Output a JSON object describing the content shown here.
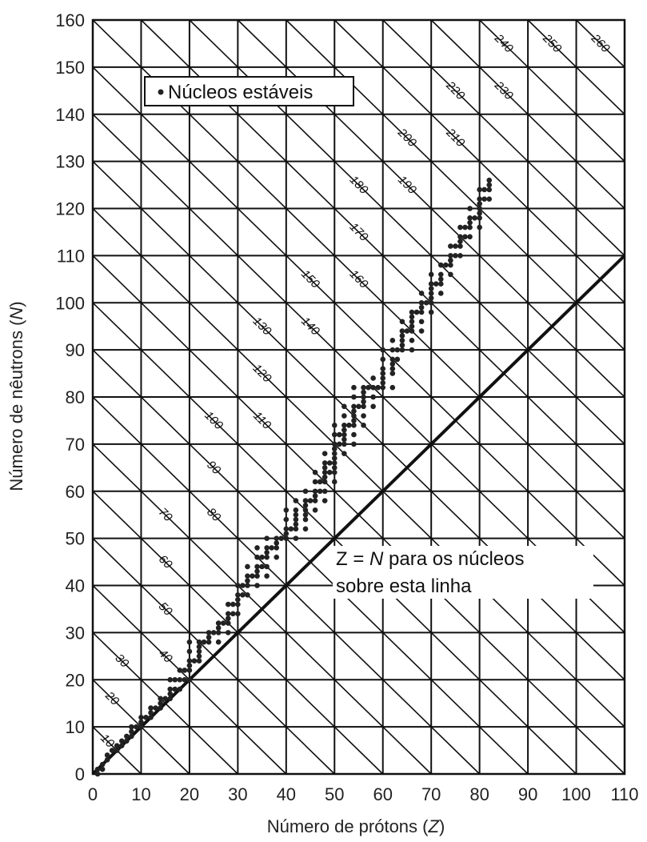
{
  "chart_data": {
    "type": "scatter",
    "xlabel_prefix": "Número de prótons (",
    "xlabel_var": "Z",
    "xlabel_suffix": ")",
    "ylabel_prefix": "Número de nêutrons (",
    "ylabel_var": "N",
    "ylabel_suffix": ")",
    "xlim": [
      0,
      110
    ],
    "ylim": [
      0,
      160
    ],
    "xticks": [
      0,
      10,
      20,
      30,
      40,
      50,
      60,
      70,
      80,
      90,
      100,
      110
    ],
    "yticks": [
      0,
      10,
      20,
      30,
      40,
      50,
      60,
      70,
      80,
      90,
      100,
      110,
      120,
      130,
      140,
      150,
      160
    ],
    "grid": true,
    "legend": {
      "label": "Núcleos estáveis",
      "placement": "top-left"
    },
    "isobar_lines": {
      "description_values": [
        10,
        20,
        30,
        40,
        50,
        60,
        70,
        80,
        90,
        100,
        110,
        120,
        130,
        140,
        150,
        160,
        170,
        180,
        190,
        200,
        210,
        220,
        230,
        240,
        250,
        260
      ]
    },
    "reference_line": {
      "label_line1_prefix": "Z = ",
      "label_line1_var": "N",
      "label_line1_suffix": " para os núcleos",
      "label_line2": "sobre esta linha",
      "x": [
        0,
        110
      ],
      "y": [
        0,
        110
      ]
    },
    "series": [
      {
        "name": "Núcleos estáveis",
        "points": [
          [
            1,
            0
          ],
          [
            1,
            1
          ],
          [
            2,
            1
          ],
          [
            2,
            2
          ],
          [
            3,
            3
          ],
          [
            3,
            4
          ],
          [
            4,
            5
          ],
          [
            5,
            5
          ],
          [
            5,
            6
          ],
          [
            6,
            6
          ],
          [
            6,
            7
          ],
          [
            7,
            7
          ],
          [
            7,
            8
          ],
          [
            8,
            8
          ],
          [
            8,
            9
          ],
          [
            8,
            10
          ],
          [
            9,
            10
          ],
          [
            10,
            10
          ],
          [
            10,
            11
          ],
          [
            10,
            12
          ],
          [
            11,
            12
          ],
          [
            12,
            12
          ],
          [
            12,
            13
          ],
          [
            12,
            14
          ],
          [
            13,
            14
          ],
          [
            14,
            14
          ],
          [
            14,
            15
          ],
          [
            14,
            16
          ],
          [
            15,
            16
          ],
          [
            16,
            16
          ],
          [
            16,
            17
          ],
          [
            16,
            18
          ],
          [
            16,
            20
          ],
          [
            17,
            18
          ],
          [
            17,
            20
          ],
          [
            18,
            18
          ],
          [
            18,
            20
          ],
          [
            18,
            22
          ],
          [
            19,
            20
          ],
          [
            19,
            22
          ],
          [
            20,
            20
          ],
          [
            20,
            22
          ],
          [
            20,
            23
          ],
          [
            20,
            24
          ],
          [
            20,
            26
          ],
          [
            20,
            28
          ],
          [
            21,
            24
          ],
          [
            22,
            24
          ],
          [
            22,
            25
          ],
          [
            22,
            26
          ],
          [
            22,
            27
          ],
          [
            22,
            28
          ],
          [
            23,
            28
          ],
          [
            24,
            28
          ],
          [
            24,
            29
          ],
          [
            24,
            30
          ],
          [
            25,
            30
          ],
          [
            26,
            28
          ],
          [
            26,
            30
          ],
          [
            26,
            31
          ],
          [
            26,
            32
          ],
          [
            27,
            32
          ],
          [
            28,
            30
          ],
          [
            28,
            32
          ],
          [
            28,
            33
          ],
          [
            28,
            34
          ],
          [
            28,
            36
          ],
          [
            29,
            34
          ],
          [
            29,
            36
          ],
          [
            30,
            34
          ],
          [
            30,
            36
          ],
          [
            30,
            37
          ],
          [
            30,
            38
          ],
          [
            30,
            40
          ],
          [
            31,
            38
          ],
          [
            31,
            40
          ],
          [
            32,
            38
          ],
          [
            32,
            40
          ],
          [
            32,
            41
          ],
          [
            32,
            42
          ],
          [
            32,
            44
          ],
          [
            33,
            42
          ],
          [
            34,
            40
          ],
          [
            34,
            42
          ],
          [
            34,
            43
          ],
          [
            34,
            44
          ],
          [
            34,
            46
          ],
          [
            34,
            48
          ],
          [
            35,
            44
          ],
          [
            35,
            46
          ],
          [
            36,
            42
          ],
          [
            36,
            44
          ],
          [
            36,
            46
          ],
          [
            36,
            47
          ],
          [
            36,
            48
          ],
          [
            36,
            50
          ],
          [
            37,
            48
          ],
          [
            38,
            46
          ],
          [
            38,
            48
          ],
          [
            38,
            49
          ],
          [
            38,
            50
          ],
          [
            39,
            50
          ],
          [
            40,
            50
          ],
          [
            40,
            51
          ],
          [
            40,
            52
          ],
          [
            40,
            54
          ],
          [
            40,
            56
          ],
          [
            41,
            52
          ],
          [
            42,
            50
          ],
          [
            42,
            52
          ],
          [
            42,
            53
          ],
          [
            42,
            54
          ],
          [
            42,
            55
          ],
          [
            42,
            56
          ],
          [
            42,
            58
          ],
          [
            44,
            52
          ],
          [
            44,
            54
          ],
          [
            44,
            55
          ],
          [
            44,
            56
          ],
          [
            44,
            57
          ],
          [
            44,
            58
          ],
          [
            44,
            60
          ],
          [
            45,
            58
          ],
          [
            46,
            56
          ],
          [
            46,
            58
          ],
          [
            46,
            59
          ],
          [
            46,
            60
          ],
          [
            46,
            62
          ],
          [
            46,
            64
          ],
          [
            47,
            60
          ],
          [
            47,
            62
          ],
          [
            48,
            58
          ],
          [
            48,
            60
          ],
          [
            48,
            62
          ],
          [
            48,
            63
          ],
          [
            48,
            64
          ],
          [
            48,
            65
          ],
          [
            48,
            66
          ],
          [
            48,
            68
          ],
          [
            49,
            64
          ],
          [
            49,
            66
          ],
          [
            50,
            62
          ],
          [
            50,
            64
          ],
          [
            50,
            65
          ],
          [
            50,
            66
          ],
          [
            50,
            67
          ],
          [
            50,
            68
          ],
          [
            50,
            69
          ],
          [
            50,
            70
          ],
          [
            50,
            72
          ],
          [
            50,
            74
          ],
          [
            51,
            70
          ],
          [
            51,
            72
          ],
          [
            52,
            68
          ],
          [
            52,
            70
          ],
          [
            52,
            71
          ],
          [
            52,
            72
          ],
          [
            52,
            73
          ],
          [
            52,
            74
          ],
          [
            52,
            76
          ],
          [
            52,
            78
          ],
          [
            53,
            74
          ],
          [
            54,
            70
          ],
          [
            54,
            72
          ],
          [
            54,
            74
          ],
          [
            54,
            75
          ],
          [
            54,
            76
          ],
          [
            54,
            77
          ],
          [
            54,
            78
          ],
          [
            54,
            80
          ],
          [
            54,
            82
          ],
          [
            55,
            78
          ],
          [
            56,
            74
          ],
          [
            56,
            76
          ],
          [
            56,
            78
          ],
          [
            56,
            79
          ],
          [
            56,
            80
          ],
          [
            56,
            81
          ],
          [
            56,
            82
          ],
          [
            57,
            82
          ],
          [
            58,
            78
          ],
          [
            58,
            80
          ],
          [
            58,
            82
          ],
          [
            58,
            84
          ],
          [
            59,
            82
          ],
          [
            60,
            82
          ],
          [
            60,
            83
          ],
          [
            60,
            84
          ],
          [
            60,
            85
          ],
          [
            60,
            86
          ],
          [
            60,
            88
          ],
          [
            60,
            90
          ],
          [
            62,
            82
          ],
          [
            62,
            85
          ],
          [
            62,
            86
          ],
          [
            62,
            87
          ],
          [
            62,
            88
          ],
          [
            62,
            90
          ],
          [
            62,
            92
          ],
          [
            63,
            88
          ],
          [
            63,
            90
          ],
          [
            64,
            90
          ],
          [
            64,
            91
          ],
          [
            64,
            92
          ],
          [
            64,
            93
          ],
          [
            64,
            94
          ],
          [
            64,
            96
          ],
          [
            65,
            94
          ],
          [
            66,
            90
          ],
          [
            66,
            92
          ],
          [
            66,
            94
          ],
          [
            66,
            95
          ],
          [
            66,
            96
          ],
          [
            66,
            97
          ],
          [
            66,
            98
          ],
          [
            67,
            98
          ],
          [
            68,
            94
          ],
          [
            68,
            96
          ],
          [
            68,
            98
          ],
          [
            68,
            99
          ],
          [
            68,
            100
          ],
          [
            68,
            102
          ],
          [
            69,
            100
          ],
          [
            70,
            98
          ],
          [
            70,
            100
          ],
          [
            70,
            101
          ],
          [
            70,
            102
          ],
          [
            70,
            103
          ],
          [
            70,
            104
          ],
          [
            70,
            106
          ],
          [
            71,
            104
          ],
          [
            72,
            102
          ],
          [
            72,
            104
          ],
          [
            72,
            105
          ],
          [
            72,
            106
          ],
          [
            72,
            108
          ],
          [
            73,
            108
          ],
          [
            74,
            106
          ],
          [
            74,
            108
          ],
          [
            74,
            109
          ],
          [
            74,
            110
          ],
          [
            74,
            112
          ],
          [
            75,
            110
          ],
          [
            75,
            112
          ],
          [
            76,
            110
          ],
          [
            76,
            112
          ],
          [
            76,
            113
          ],
          [
            76,
            114
          ],
          [
            76,
            116
          ],
          [
            77,
            114
          ],
          [
            77,
            116
          ],
          [
            78,
            114
          ],
          [
            78,
            116
          ],
          [
            78,
            117
          ],
          [
            78,
            118
          ],
          [
            78,
            120
          ],
          [
            79,
            118
          ],
          [
            80,
            116
          ],
          [
            80,
            118
          ],
          [
            80,
            119
          ],
          [
            80,
            120
          ],
          [
            80,
            121
          ],
          [
            80,
            122
          ],
          [
            80,
            124
          ],
          [
            81,
            122
          ],
          [
            81,
            124
          ],
          [
            82,
            122
          ],
          [
            82,
            124
          ],
          [
            82,
            125
          ],
          [
            82,
            126
          ]
        ]
      }
    ]
  }
}
